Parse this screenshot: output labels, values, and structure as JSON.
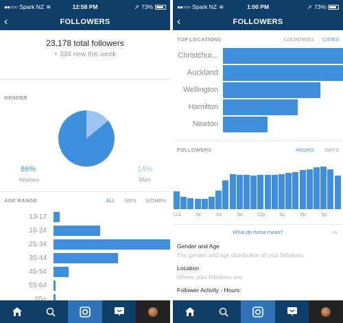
{
  "left": {
    "status": {
      "carrier": "Spark NZ",
      "time": "12:58 PM",
      "battery": "73%"
    },
    "nav": {
      "title": "FOLLOWERS"
    },
    "summary": {
      "total": "23,178 total followers",
      "new": "+ 334 new this week"
    },
    "gender": {
      "label": "GENDER",
      "women_pct": "86%",
      "women_label": "Women",
      "men_pct": "14%",
      "men_label": "Men",
      "colors": {
        "women": "#3f8fdd",
        "men": "#9bc5ef"
      }
    },
    "age_range": {
      "label": "AGE RANGE",
      "filters": [
        "ALL",
        "MEN",
        "WOMEN"
      ],
      "active_filter": "ALL"
    }
  },
  "right": {
    "status": {
      "carrier": "Spark NZ",
      "time": "1:00 PM",
      "battery": "73%"
    },
    "nav": {
      "title": "FOLLOWERS"
    },
    "top_locations": {
      "label": "TOP LOCATIONS",
      "filters": [
        "COUNTRIES",
        "CITIES"
      ],
      "active_filter": "CITIES"
    },
    "activity": {
      "label": "FOLLOWERS",
      "filters": [
        "HOURS",
        "DAYS"
      ],
      "active_filter": "HOURS",
      "tick_labels": [
        "12a",
        "3a",
        "6a",
        "9a",
        "12p",
        "3p",
        "6p",
        "9p"
      ]
    },
    "help_link": "What do these mean?",
    "info": [
      {
        "title": "Gender and Age",
        "desc": "The gender and age distribution of your followers."
      },
      {
        "title": "Location",
        "desc": "Where your followers are."
      },
      {
        "title": "Follower Activity - Hours",
        "desc": ""
      }
    ]
  },
  "icons": {
    "tabs": [
      "home-icon",
      "search-icon",
      "camera-icon",
      "activity-icon",
      "profile-avatar"
    ],
    "accent": "#3f8fdd",
    "nav_bg": "#0e3e68"
  },
  "chart_data": [
    {
      "type": "pie",
      "categories": [
        "Women",
        "Men"
      ],
      "values": [
        86,
        14
      ]
    },
    {
      "type": "bar",
      "orientation": "horizontal",
      "categories": [
        "13-17",
        "18-24",
        "25-34",
        "35-44",
        "45-54",
        "55-64",
        "65+"
      ],
      "values": [
        5,
        40,
        100,
        55,
        13,
        2,
        1
      ],
      "xlim": [
        0,
        100
      ]
    },
    {
      "type": "bar",
      "orientation": "horizontal",
      "categories": [
        "Christchur...",
        "Auckland",
        "Wellington",
        "Hamilton",
        "Newton"
      ],
      "values": [
        100,
        100,
        81,
        62,
        37
      ],
      "xlim": [
        0,
        100
      ]
    },
    {
      "type": "bar",
      "categories": [
        "12a",
        "1a",
        "2a",
        "3a",
        "4a",
        "5a",
        "6a",
        "7a",
        "8a",
        "9a",
        "10a",
        "11a",
        "12p",
        "1p",
        "2p",
        "3p",
        "4p",
        "5p",
        "6p",
        "7p",
        "8p",
        "9p",
        "10p",
        "11p"
      ],
      "values": [
        48,
        33,
        29,
        27,
        28,
        33,
        50,
        78,
        95,
        93,
        92,
        90,
        92,
        93,
        93,
        94,
        98,
        100,
        105,
        108,
        112,
        114,
        108,
        90
      ],
      "ylim": [
        0,
        120
      ]
    }
  ]
}
